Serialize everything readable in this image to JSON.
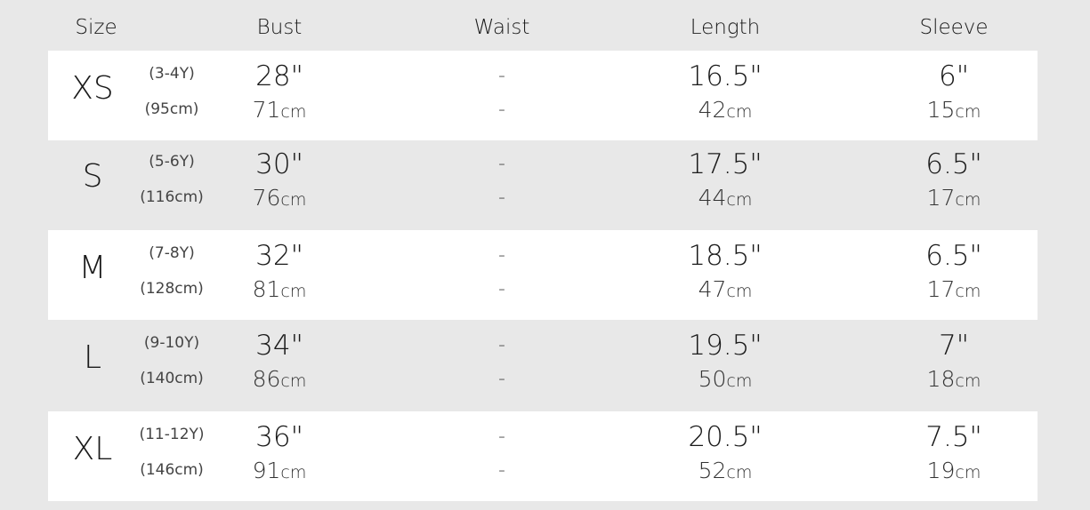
{
  "headers": {
    "size": "Size",
    "bust": "Bust",
    "waist": "Waist",
    "length": "Length",
    "sleeve": "Sleeve"
  },
  "unit_cm": "cm",
  "rows": [
    {
      "size": "XS",
      "age": "(3-4Y)",
      "height": "(95cm)",
      "bust_in": "28\"",
      "bust_cm": "71",
      "waist_in": "-",
      "waist_cm": "-",
      "length_in": "16.5\"",
      "length_cm": "42",
      "sleeve_in": "6\"",
      "sleeve_cm": "15"
    },
    {
      "size": "S",
      "age": "(5-6Y)",
      "height": "(116cm)",
      "bust_in": "30\"",
      "bust_cm": "76",
      "waist_in": "-",
      "waist_cm": "-",
      "length_in": "17.5\"",
      "length_cm": "44",
      "sleeve_in": "6.5\"",
      "sleeve_cm": "17"
    },
    {
      "size": "M",
      "age": "(7-8Y)",
      "height": "(128cm)",
      "bust_in": "32\"",
      "bust_cm": "81",
      "waist_in": "-",
      "waist_cm": "-",
      "length_in": "18.5\"",
      "length_cm": "47",
      "sleeve_in": "6.5\"",
      "sleeve_cm": "17"
    },
    {
      "size": "L",
      "age": "(9-10Y)",
      "height": "(140cm)",
      "bust_in": "34\"",
      "bust_cm": "86",
      "waist_in": "-",
      "waist_cm": "-",
      "length_in": "19.5\"",
      "length_cm": "50",
      "sleeve_in": "7\"",
      "sleeve_cm": "18"
    },
    {
      "size": "XL",
      "age": "(11-12Y)",
      "height": "(146cm)",
      "bust_in": "36\"",
      "bust_cm": "91",
      "waist_in": "-",
      "waist_cm": "-",
      "length_in": "20.5\"",
      "length_cm": "52",
      "sleeve_in": "7.5\"",
      "sleeve_cm": "19"
    }
  ]
}
